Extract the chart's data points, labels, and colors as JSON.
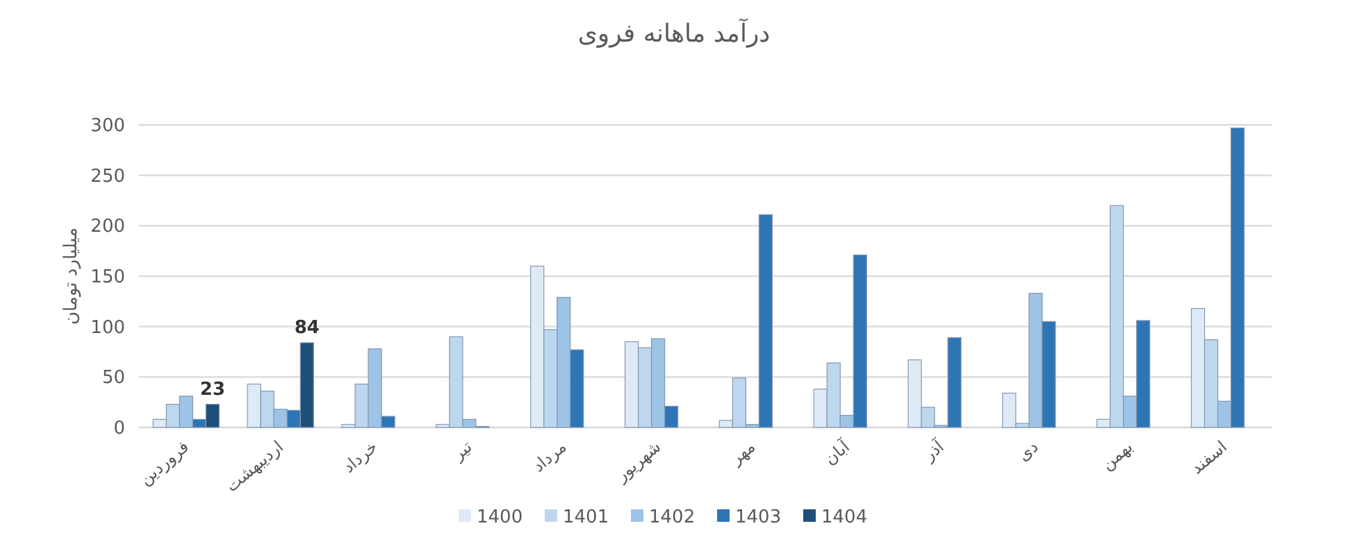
{
  "chart_data": {
    "type": "bar",
    "title": "درآمد ماهانه فروی",
    "ylabel": "میلیارد تومان",
    "categories": [
      "فروردین",
      "اردیبهشت",
      "خرداد",
      "تیر",
      "مرداد",
      "شهریور",
      "مهر",
      "آبان",
      "آذر",
      "دی",
      "بهمن",
      "اسفند"
    ],
    "series": [
      {
        "name": "1400",
        "color": "#deebf7",
        "values": [
          8,
          43,
          3,
          3,
          160,
          85,
          7,
          38,
          67,
          34,
          8,
          118
        ]
      },
      {
        "name": "1401",
        "color": "#bdd7ee",
        "values": [
          23,
          36,
          43,
          90,
          97,
          79,
          49,
          64,
          20,
          4,
          220,
          87
        ]
      },
      {
        "name": "1402",
        "color": "#9dc3e6",
        "values": [
          31,
          18,
          78,
          8,
          129,
          88,
          3,
          12,
          2,
          133,
          31,
          26
        ]
      },
      {
        "name": "1403",
        "color": "#2e75b6",
        "values": [
          8,
          17,
          11,
          1,
          77,
          21,
          211,
          171,
          89,
          105,
          106,
          297
        ]
      },
      {
        "name": "1404",
        "color": "#1f4e79",
        "values": [
          23,
          84,
          null,
          null,
          null,
          null,
          null,
          null,
          null,
          null,
          null,
          null
        ],
        "value_labels": [
          "23",
          "84",
          null,
          null,
          null,
          null,
          null,
          null,
          null,
          null,
          null,
          null
        ]
      }
    ],
    "ylim": [
      0,
      300
    ],
    "yticks": [
      0,
      50,
      100,
      150,
      200,
      250,
      300
    ],
    "grid": "y",
    "legend": "bottom"
  }
}
